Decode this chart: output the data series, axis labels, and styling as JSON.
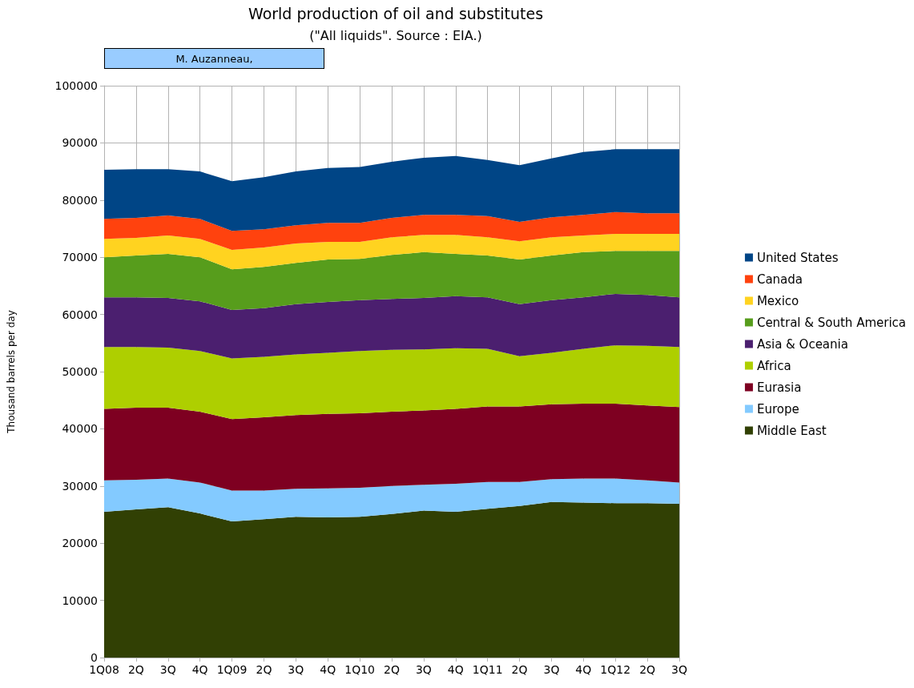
{
  "chart_data": {
    "type": "area",
    "stacked": true,
    "title": "World production of oil and substitutes",
    "subtitle": "(\"All liquids\". Source : EIA.)",
    "ylabel": "Thousand barrels per day",
    "annotations": [
      "M. Auzanneau,"
    ],
    "categories": [
      "1Q08",
      "2Q",
      "3Q",
      "4Q",
      "1Q09",
      "2Q",
      "3Q",
      "4Q",
      "1Q10",
      "2Q",
      "3Q",
      "4Q",
      "1Q11",
      "2Q",
      "3Q",
      "4Q",
      "1Q12",
      "2Q",
      "3Q"
    ],
    "ylim": [
      0,
      100000
    ],
    "yticks": [
      0,
      10000,
      20000,
      30000,
      40000,
      50000,
      60000,
      70000,
      80000,
      90000,
      100000
    ],
    "grid": true,
    "legend": "right",
    "series": [
      {
        "name": "Middle East",
        "color": "#314004",
        "values": [
          25500,
          25900,
          26300,
          25200,
          23800,
          24200,
          24600,
          24500,
          24600,
          25100,
          25700,
          25500,
          26000,
          26500,
          27200,
          27100,
          27000,
          27000,
          26900
        ]
      },
      {
        "name": "Europe",
        "color": "#83caff",
        "values": [
          5500,
          5200,
          5000,
          5400,
          5400,
          5000,
          4900,
          5100,
          5100,
          4900,
          4500,
          4900,
          4700,
          4200,
          4000,
          4200,
          4300,
          4000,
          3700
        ]
      },
      {
        "name": "Eurasia",
        "color": "#7e0021",
        "values": [
          12500,
          12600,
          12400,
          12400,
          12500,
          12800,
          12900,
          13000,
          13000,
          13000,
          13000,
          13100,
          13200,
          13200,
          13100,
          13100,
          13100,
          13100,
          13200
        ]
      },
      {
        "name": "Africa",
        "color": "#aecf00",
        "values": [
          10800,
          10600,
          10500,
          10600,
          10600,
          10600,
          10600,
          10700,
          10900,
          10800,
          10700,
          10600,
          10100,
          8800,
          9000,
          9600,
          10200,
          10400,
          10500
        ]
      },
      {
        "name": "Asia & Oceania",
        "color": "#4b1f6f",
        "values": [
          8700,
          8700,
          8700,
          8700,
          8500,
          8500,
          8800,
          8900,
          8900,
          8900,
          9000,
          9100,
          9000,
          9100,
          9200,
          9000,
          9000,
          8900,
          8700
        ]
      },
      {
        "name": "Central & South America",
        "color": "#579d1c",
        "values": [
          7000,
          7300,
          7700,
          7700,
          7100,
          7200,
          7200,
          7400,
          7200,
          7700,
          8000,
          7400,
          7300,
          7800,
          7800,
          7900,
          7500,
          7700,
          8100
        ]
      },
      {
        "name": "Mexico",
        "color": "#ffd320",
        "values": [
          3200,
          3100,
          3200,
          3200,
          3400,
          3400,
          3400,
          3100,
          3000,
          3100,
          3000,
          3300,
          3200,
          3200,
          3200,
          2900,
          3000,
          3000,
          3000
        ]
      },
      {
        "name": "Canada",
        "color": "#ff420e",
        "values": [
          3500,
          3500,
          3500,
          3500,
          3300,
          3200,
          3200,
          3300,
          3300,
          3400,
          3500,
          3500,
          3700,
          3400,
          3500,
          3600,
          3800,
          3600,
          3600
        ]
      },
      {
        "name": "United States",
        "color": "#004586",
        "values": [
          8600,
          8500,
          8100,
          8300,
          8700,
          9100,
          9400,
          9600,
          9800,
          9800,
          10000,
          10300,
          9800,
          9900,
          10300,
          11000,
          11000,
          11200,
          11200
        ]
      }
    ]
  }
}
